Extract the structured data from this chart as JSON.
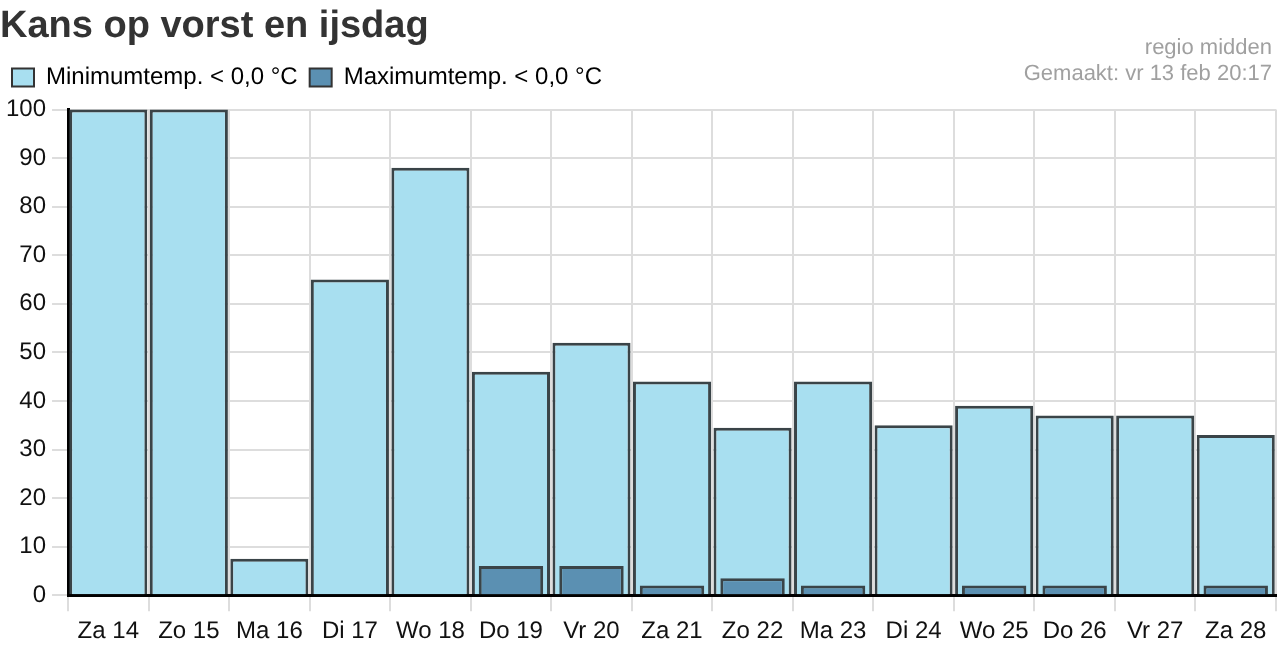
{
  "chart_data": {
    "type": "bar",
    "title": "Kans op vorst en ijsdag",
    "annotations": [
      "regio midden",
      "Gemaakt: vr 13 feb 20:17"
    ],
    "categories": [
      "Za 14",
      "Zo 15",
      "Ma 16",
      "Di 17",
      "Wo 18",
      "Do 19",
      "Vr 20",
      "Za 21",
      "Zo 22",
      "Ma 23",
      "Di 24",
      "Wo 25",
      "Do 26",
      "Vr 27",
      "Za 28"
    ],
    "series": [
      {
        "name": "Minimumtemp. < 0,0 °C",
        "color": "#a8dff0",
        "values": [
          100,
          100,
          7.5,
          65,
          88,
          46,
          52,
          44,
          34.5,
          44,
          35,
          39,
          37,
          37,
          33
        ]
      },
      {
        "name": "Maximumtemp. < 0,0 °C",
        "color": "#5b90b2",
        "values": [
          0,
          0,
          0,
          0,
          0,
          6,
          6,
          2,
          3.5,
          2,
          0,
          2,
          2,
          0,
          2
        ]
      }
    ],
    "ylim": [
      0,
      100
    ],
    "yticks": [
      0,
      10,
      20,
      30,
      40,
      50,
      60,
      70,
      80,
      90,
      100
    ],
    "grid": true,
    "legend": "top left"
  }
}
